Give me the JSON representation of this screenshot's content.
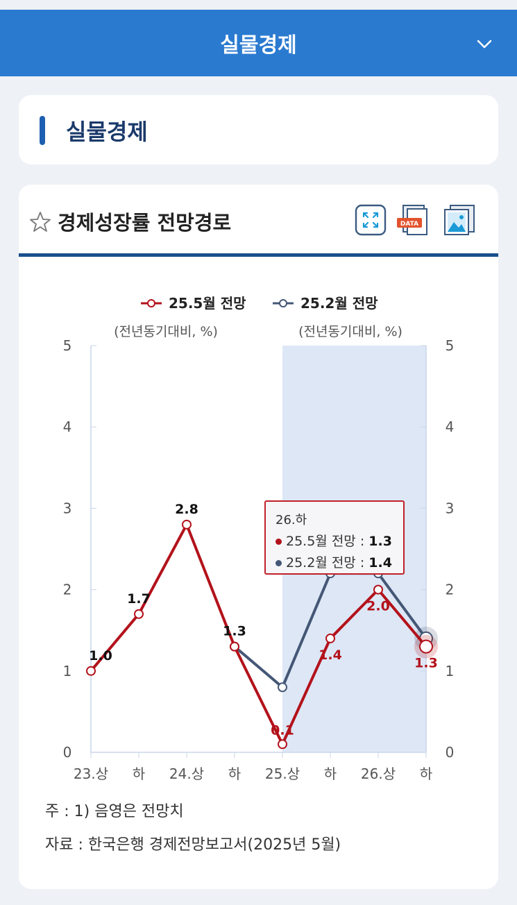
{
  "header": {
    "title": "실물경제"
  },
  "section": {
    "title": "실물경제"
  },
  "card": {
    "title": "경제성장률 전망경로"
  },
  "tooltip": {
    "period": "26.하",
    "rows": [
      {
        "name": "25.5월 전망",
        "value": "1.3",
        "color": "#b3121b"
      },
      {
        "name": "25.2월 전망",
        "value": "1.4",
        "color": "#445775"
      }
    ]
  },
  "notes": {
    "note1": "주 : 1)  음영은 전망치",
    "source": "자료 :  한국은행 경제전망보고서(2025년 5월)"
  },
  "chart_data": {
    "type": "line",
    "categories": [
      "23.상",
      "하",
      "24.상",
      "하",
      "25.상",
      "하",
      "26.상",
      "하"
    ],
    "yunit_left": "(전년동기대비, %)",
    "yunit_right": "(전년동기대비, %)",
    "ylim": [
      0,
      5
    ],
    "yticks": [
      "0",
      "1",
      "2",
      "3",
      "4",
      "5"
    ],
    "shaded_from_category": "25.상",
    "legend_position": "top",
    "series": [
      {
        "name": "25.5월 전망",
        "color": "#b3121b",
        "values": [
          1.0,
          1.7,
          2.8,
          1.3,
          0.1,
          1.4,
          2.0,
          1.3
        ],
        "labels": [
          "1.0",
          "1.7",
          "2.8",
          "1.3",
          "0.1",
          "1.4",
          "2.0",
          "1.3"
        ]
      },
      {
        "name": "25.2월 전망",
        "color": "#445775",
        "values": [
          null,
          null,
          null,
          1.3,
          0.8,
          2.2,
          2.2,
          1.4
        ]
      }
    ]
  }
}
